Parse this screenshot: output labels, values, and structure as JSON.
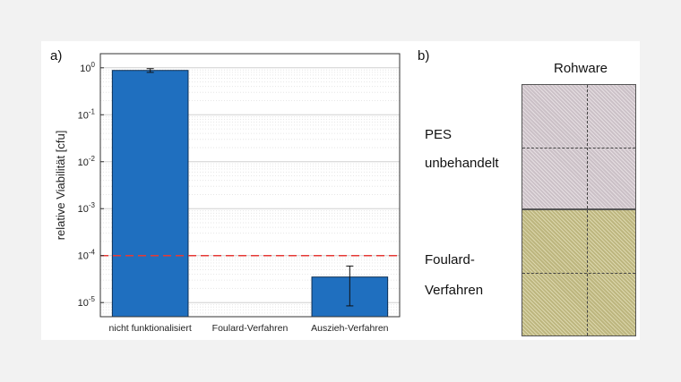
{
  "panel_a_label": "a)",
  "panel_b_label": "b)",
  "chart_data": {
    "type": "bar",
    "categories": [
      "nicht funktionalisiert",
      "Foulard-Verfahren",
      "Auszieh-Verfahren"
    ],
    "values": [
      0.88,
      null,
      3.5e-05
    ],
    "error_low": [
      0.8,
      null,
      8.5e-06
    ],
    "error_high": [
      0.96,
      null,
      6e-05
    ],
    "ylabel": "relative Viabilität [cfu]",
    "yscale": "log",
    "ylim": [
      5e-06,
      2
    ],
    "yticks": [
      {
        "value": 1,
        "base": "10",
        "exp": "0"
      },
      {
        "value": 0.1,
        "base": "10",
        "exp": "-1"
      },
      {
        "value": 0.01,
        "base": "10",
        "exp": "-2"
      },
      {
        "value": 0.001,
        "base": "10",
        "exp": "-3"
      },
      {
        "value": 0.0001,
        "base": "10",
        "exp": "-4"
      },
      {
        "value": 1e-05,
        "base": "10",
        "exp": "-5"
      }
    ],
    "threshold": 0.0001,
    "grid": true,
    "colors": {
      "bar": "#1f6fbf",
      "bar_edge": "#0d2f55",
      "threshold": "#e53935"
    }
  },
  "panel_b": {
    "column_header": "Rohware",
    "row1_line1": "PES",
    "row1_line2": "unbehandelt",
    "row2_line1": "Foulard-",
    "row2_line2": "Verfahren",
    "colors": {
      "top_fabric": "#d8cdd3",
      "bottom_fabric": "#cdc68a"
    }
  }
}
